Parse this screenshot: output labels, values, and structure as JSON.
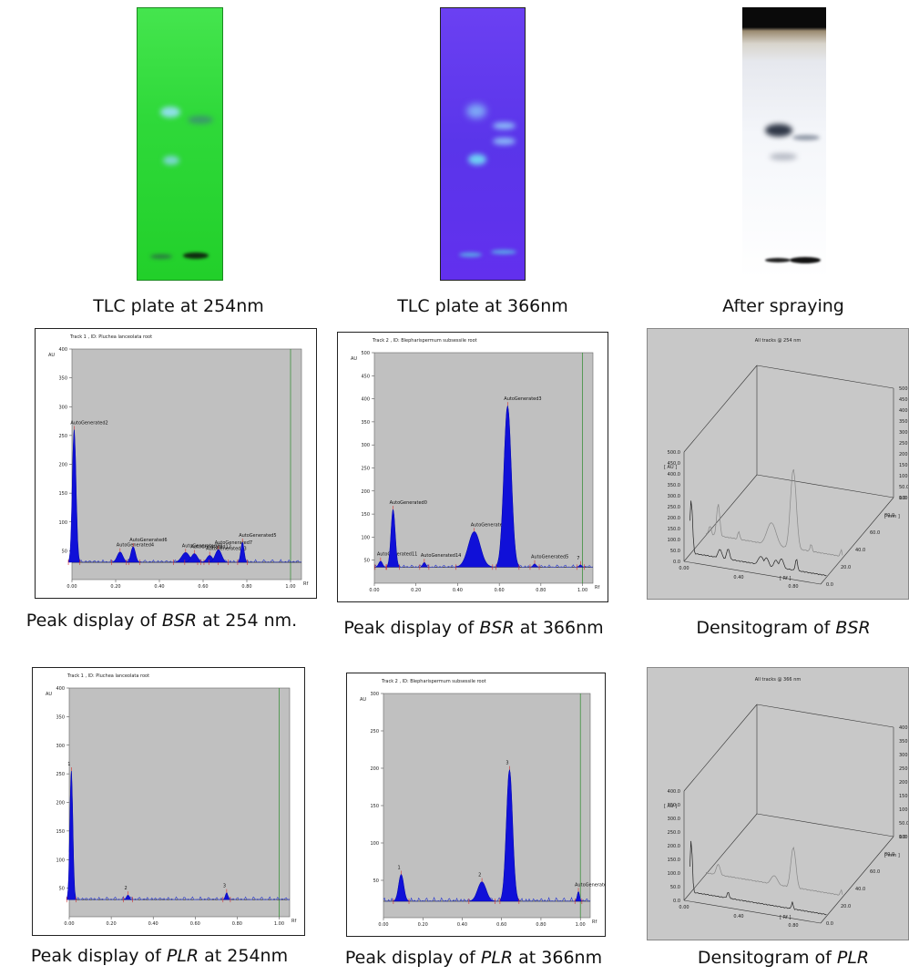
{
  "plates": [
    {
      "caption": "TLC plate at 254nm",
      "color_top": "#3fe04a",
      "color_bottom": "#25d628"
    },
    {
      "caption": "TLC plate at 366nm",
      "color_top": "#6a3ff0",
      "color_bottom": "#5a34e8"
    },
    {
      "caption": "After spraying",
      "color_top": "#e8e8ee",
      "color_bottom": "#ffffff"
    }
  ],
  "peak_panels": [
    {
      "title": "Track  1 , ID: Pluchea lanceolata root",
      "caption_pre": "Peak display of ",
      "caption_em": "BSR",
      "caption_post": " at 254 nm.",
      "y_unit": "AU",
      "x_unit": "Rf",
      "y_ticks": [
        "50",
        "100",
        "150",
        "200",
        "250",
        "300",
        "350",
        "400"
      ],
      "x_ticks": [
        "0.00",
        "0.20",
        "0.40",
        "0.60",
        "0.80",
        "1.00"
      ]
    },
    {
      "title": "Track  2 , ID: Blepharispermum subsessile root",
      "caption_pre": "Peak display of ",
      "caption_em": "BSR",
      "caption_post": " at 366nm",
      "y_unit": "AU",
      "x_unit": "Rf",
      "y_ticks": [
        "50",
        "100",
        "150",
        "200",
        "250",
        "300",
        "350",
        "400",
        "450",
        "500"
      ],
      "x_ticks": [
        "0.00",
        "0.20",
        "0.40",
        "0.60",
        "0.80",
        "1.00"
      ]
    },
    {
      "title": "Track  1 , ID: Pluchea lanceolata root",
      "caption_pre": "Peak display of ",
      "caption_em": "PLR",
      "caption_post": " at 254nm",
      "y_unit": "AU",
      "x_unit": "Rf",
      "y_ticks": [
        "50",
        "100",
        "150",
        "200",
        "250",
        "300",
        "350",
        "400"
      ],
      "x_ticks": [
        "0.00",
        "0.20",
        "0.40",
        "0.60",
        "0.80",
        "1.00"
      ]
    },
    {
      "title": "Track  2 , ID: Blepharispermum subsessile root",
      "caption_pre": "Peak display of ",
      "caption_em": "PLR",
      "caption_post": " at 366nm",
      "y_unit": "AU",
      "x_unit": "Rf",
      "y_ticks": [
        "50",
        "100",
        "150",
        "200",
        "250",
        "300"
      ],
      "x_ticks": [
        "0.00",
        "0.20",
        "0.40",
        "0.60",
        "0.80",
        "1.00"
      ]
    }
  ],
  "densitograms": [
    {
      "title": "All tracks @ 254 nm",
      "caption_pre": "Densitogram of ",
      "caption_em": "BSR",
      "au_ticks": [
        "500.0",
        "450.0",
        "400.0",
        "350.0",
        "300.0",
        "250.0",
        "200.0",
        "150.0",
        "100.0",
        "50.0",
        "0.0"
      ],
      "au_label": "[ AU ]",
      "rf_ticks": [
        "0.00",
        "0.20",
        "0.40",
        "0.60",
        "0.80",
        "1.00"
      ],
      "rf_label": "[ Rf ]",
      "mm_ticks": [
        "100.0",
        "80.0",
        "60.0",
        "40.0",
        "20.0",
        "0.0"
      ],
      "mm_label": "[ mm ]"
    },
    {
      "title": "All tracks @ 366 nm",
      "caption_pre": "Densitogram of ",
      "caption_em": "PLR",
      "au_ticks": [
        "400.0",
        "350.0",
        "300.0",
        "250.0",
        "200.0",
        "150.0",
        "100.0",
        "50.0",
        "0.0"
      ],
      "au_label": "[ AU ]",
      "rf_ticks": [
        "0.00",
        "0.20",
        "0.40",
        "0.60",
        "0.80",
        "1.00"
      ],
      "rf_label": "[ Rf ]",
      "mm_ticks": [
        "100.0",
        "80.0",
        "60.0",
        "40.0",
        "20.0",
        "0.0"
      ],
      "mm_label": "[ mm ]"
    }
  ],
  "chart_data": [
    {
      "type": "area",
      "id": "bsr-254",
      "ylim": [
        0,
        400
      ],
      "xlim": [
        0,
        1.05
      ],
      "peaks": [
        {
          "label": "AutoGenerated2",
          "rf": 0.01,
          "height": 260,
          "width": 0.012
        },
        {
          "label": "AutoGenerated4",
          "rf": 0.22,
          "height": 48,
          "width": 0.018
        },
        {
          "label": "AutoGenerated6",
          "rf": 0.28,
          "height": 57,
          "width": 0.014
        },
        {
          "label": "AutoGenerated10",
          "rf": 0.52,
          "height": 47,
          "width": 0.025
        },
        {
          "label": "AutoGenerated12",
          "rf": 0.56,
          "height": 45,
          "width": 0.02
        },
        {
          "label": "AutoGenerated13",
          "rf": 0.63,
          "height": 42,
          "width": 0.018
        },
        {
          "label": "AutoGenerated7",
          "rf": 0.67,
          "height": 52,
          "width": 0.02
        },
        {
          "label": "AutoGenerated5",
          "rf": 0.78,
          "height": 65,
          "width": 0.01
        }
      ],
      "baseline": 30
    },
    {
      "type": "area",
      "id": "bsr-366",
      "ylim": [
        0,
        500
      ],
      "xlim": [
        0,
        1.05
      ],
      "peaks": [
        {
          "label": "AutoGenerated11",
          "rf": 0.03,
          "height": 48,
          "width": 0.012
        },
        {
          "label": "AutoGenerated0",
          "rf": 0.09,
          "height": 160,
          "width": 0.014
        },
        {
          "label": "AutoGenerated14",
          "rf": 0.24,
          "height": 45,
          "width": 0.01
        },
        {
          "label": "AutoGenerated4",
          "rf": 0.48,
          "height": 112,
          "width": 0.04
        },
        {
          "label": "AutoGenerated3",
          "rf": 0.64,
          "height": 385,
          "width": 0.025
        },
        {
          "label": "AutoGenerated5",
          "rf": 0.77,
          "height": 42,
          "width": 0.01
        },
        {
          "label": "7",
          "rf": 0.99,
          "height": 40,
          "width": 0.008
        }
      ],
      "baseline": 35
    },
    {
      "type": "area",
      "id": "plr-254",
      "ylim": [
        0,
        400
      ],
      "xlim": [
        0,
        1.05
      ],
      "peaks": [
        {
          "label": "1",
          "rf": 0.01,
          "height": 255,
          "width": 0.01
        },
        {
          "label": "2",
          "rf": 0.28,
          "height": 38,
          "width": 0.01
        },
        {
          "label": "3",
          "rf": 0.75,
          "height": 42,
          "width": 0.008
        }
      ],
      "baseline": 30
    },
    {
      "type": "area",
      "id": "plr-366",
      "ylim": [
        0,
        300
      ],
      "xlim": [
        0,
        1.05
      ],
      "peaks": [
        {
          "label": "1",
          "rf": 0.09,
          "height": 58,
          "width": 0.018
        },
        {
          "label": "2",
          "rf": 0.5,
          "height": 48,
          "width": 0.03
        },
        {
          "label": "3",
          "rf": 0.64,
          "height": 198,
          "width": 0.022
        },
        {
          "label": "AutoGenerated4",
          "rf": 0.99,
          "height": 35,
          "width": 0.008
        }
      ],
      "baseline": 22
    }
  ]
}
